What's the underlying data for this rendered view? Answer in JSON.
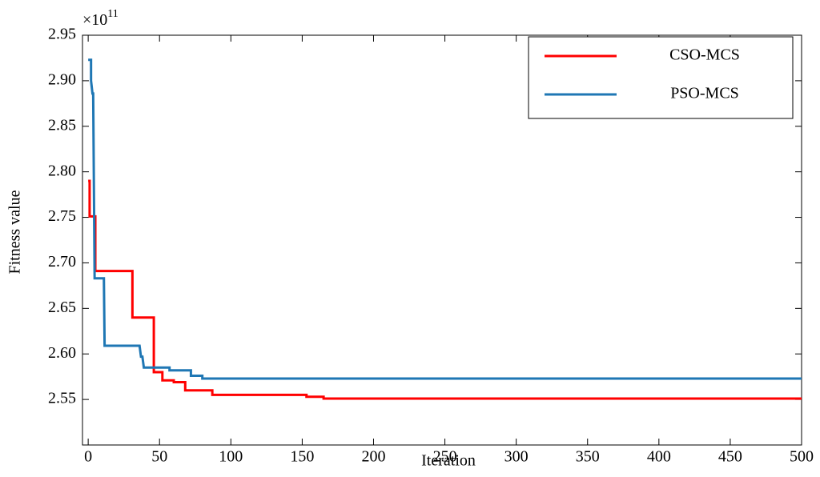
{
  "chart_data": {
    "type": "line",
    "xlabel": "Iteration",
    "ylabel": "Fitness value",
    "y_multiplier": {
      "base": "×10",
      "exponent": "11"
    },
    "xlim": [
      -4,
      500
    ],
    "ylim": [
      2.5,
      2.95
    ],
    "xticks": [
      0,
      50,
      100,
      150,
      200,
      250,
      300,
      350,
      400,
      450,
      500
    ],
    "yticks": [
      2.55,
      {
        "value": 2.6,
        "label": "2.60"
      },
      2.65,
      {
        "value": 2.7,
        "label": "2.70"
      },
      2.75,
      {
        "value": 2.8,
        "label": "2.80"
      },
      2.85,
      {
        "value": 2.9,
        "label": "2.90"
      },
      2.95
    ],
    "legend": "upper right",
    "series": [
      {
        "name": "CSO-MCS",
        "color": "#ff0000",
        "x": [
          0,
          1,
          1,
          5,
          5,
          31,
          31,
          46,
          46,
          52,
          52,
          60,
          60,
          68,
          68,
          87,
          87,
          153,
          153,
          165,
          165,
          500
        ],
        "values": [
          2.79,
          2.79,
          2.751,
          2.751,
          2.691,
          2.691,
          2.64,
          2.64,
          2.58,
          2.58,
          2.571,
          2.571,
          2.569,
          2.569,
          2.56,
          2.56,
          2.555,
          2.555,
          2.553,
          2.553,
          2.551,
          2.551
        ]
      },
      {
        "name": "PSO-MCS",
        "color": "#1f77b4",
        "x": [
          0,
          2,
          2,
          3,
          3.5,
          4.5,
          11,
          11.5,
          36,
          37,
          38,
          39,
          57,
          57,
          72,
          72,
          80,
          80,
          500
        ],
        "values": [
          2.923,
          2.923,
          2.9,
          2.886,
          2.886,
          2.683,
          2.683,
          2.609,
          2.609,
          2.597,
          2.597,
          2.585,
          2.585,
          2.582,
          2.582,
          2.576,
          2.576,
          2.573,
          2.573
        ]
      }
    ]
  }
}
